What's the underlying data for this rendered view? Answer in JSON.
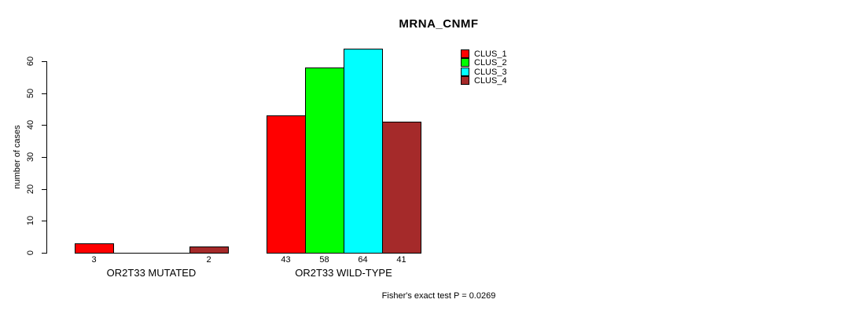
{
  "chart_data": {
    "type": "bar",
    "title": "MRNA_CNMF",
    "ylabel": "number of cases",
    "xlabel": "",
    "ylim": [
      0,
      60
    ],
    "yticks": [
      0,
      10,
      20,
      30,
      40,
      50,
      60
    ],
    "grid": false,
    "legend_position": "top-right",
    "series": [
      {
        "name": "CLUS_1",
        "color": "#FF0000"
      },
      {
        "name": "CLUS_2",
        "color": "#00FF00"
      },
      {
        "name": "CLUS_3",
        "color": "#00FFFF"
      },
      {
        "name": "CLUS_4",
        "color": "#A52A2A"
      }
    ],
    "categories": [
      "OR2T33 MUTATED",
      "OR2T33 WILD-TYPE"
    ],
    "groups": [
      {
        "label": "OR2T33 MUTATED",
        "values": [
          3,
          0,
          0,
          2
        ],
        "bar_labels": [
          "3",
          "",
          "",
          "2"
        ]
      },
      {
        "label": "OR2T33 WILD-TYPE",
        "values": [
          43,
          58,
          64,
          41
        ],
        "bar_labels": [
          "43",
          "58",
          "64",
          "41"
        ]
      }
    ],
    "annotation": "Fisher's exact test P = 0.0269",
    "background_color": "#FFFFFF",
    "axis_color": "#000000"
  }
}
